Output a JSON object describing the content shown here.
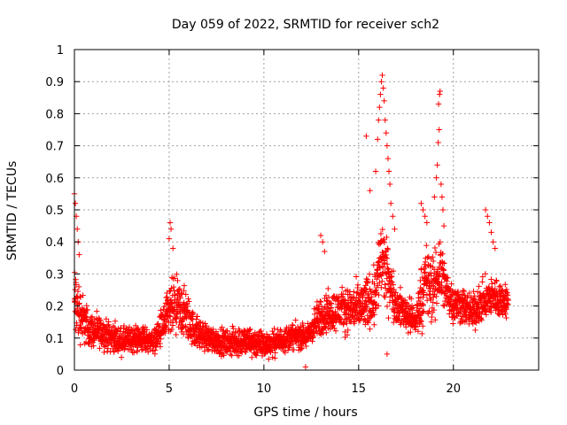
{
  "chart_data": {
    "type": "scatter",
    "title": "Day 059 of 2022, SRMTID for receiver sch2",
    "xlabel": "GPS time / hours",
    "ylabel": "SRMTID / TECUs",
    "xlim": [
      0,
      24.5
    ],
    "ylim": [
      0,
      1
    ],
    "x_ticks": [
      "0",
      "5",
      "10",
      "15",
      "20"
    ],
    "x_tick_values": [
      0,
      5,
      10,
      15,
      20
    ],
    "y_ticks": [
      "0",
      "0.1",
      "0.2",
      "0.3",
      "0.4",
      "0.5",
      "0.6",
      "0.7",
      "0.8",
      "0.9",
      "1"
    ],
    "y_tick_values": [
      0,
      0.1,
      0.2,
      0.3,
      0.4,
      0.5,
      0.6,
      0.7,
      0.8,
      0.9,
      1.0
    ],
    "grid": true,
    "marker": "+",
    "marker_color": "#ff0000",
    "envelope": [
      [
        0.0,
        0.02,
        0.4
      ],
      [
        0.3,
        0.05,
        0.3
      ],
      [
        0.8,
        0.05,
        0.2
      ],
      [
        1.5,
        0.05,
        0.18
      ],
      [
        2.5,
        0.03,
        0.15
      ],
      [
        3.5,
        0.04,
        0.16
      ],
      [
        4.2,
        0.04,
        0.14
      ],
      [
        4.6,
        0.04,
        0.22
      ],
      [
        5.2,
        0.06,
        0.33
      ],
      [
        5.8,
        0.06,
        0.3
      ],
      [
        6.3,
        0.05,
        0.2
      ],
      [
        7.0,
        0.04,
        0.16
      ],
      [
        8.0,
        0.03,
        0.14
      ],
      [
        9.0,
        0.02,
        0.16
      ],
      [
        10.0,
        0.02,
        0.14
      ],
      [
        10.5,
        0.03,
        0.14
      ],
      [
        11.5,
        0.05,
        0.16
      ],
      [
        12.3,
        0.05,
        0.16
      ],
      [
        13.0,
        0.08,
        0.26
      ],
      [
        14.0,
        0.1,
        0.28
      ],
      [
        15.0,
        0.08,
        0.3
      ],
      [
        15.8,
        0.1,
        0.35
      ],
      [
        16.2,
        0.15,
        0.55
      ],
      [
        16.6,
        0.15,
        0.4
      ],
      [
        17.0,
        0.12,
        0.28
      ],
      [
        17.5,
        0.1,
        0.26
      ],
      [
        18.0,
        0.08,
        0.22
      ],
      [
        18.5,
        0.1,
        0.45
      ],
      [
        19.0,
        0.1,
        0.4
      ],
      [
        19.3,
        0.15,
        0.5
      ],
      [
        19.6,
        0.15,
        0.35
      ],
      [
        20.0,
        0.12,
        0.3
      ],
      [
        20.5,
        0.12,
        0.28
      ],
      [
        21.0,
        0.1,
        0.26
      ],
      [
        21.5,
        0.12,
        0.3
      ],
      [
        22.0,
        0.14,
        0.32
      ],
      [
        22.5,
        0.14,
        0.3
      ],
      [
        22.9,
        0.14,
        0.28
      ]
    ],
    "highlights": [
      [
        0.0,
        0.55
      ],
      [
        0.05,
        0.52
      ],
      [
        0.1,
        0.48
      ],
      [
        0.15,
        0.44
      ],
      [
        0.2,
        0.4
      ],
      [
        0.25,
        0.36
      ],
      [
        5.05,
        0.46
      ],
      [
        5.1,
        0.44
      ],
      [
        5.0,
        0.41
      ],
      [
        5.2,
        0.38
      ],
      [
        13.0,
        0.42
      ],
      [
        13.1,
        0.4
      ],
      [
        13.2,
        0.37
      ],
      [
        12.2,
        0.01
      ],
      [
        15.4,
        0.73
      ],
      [
        15.6,
        0.56
      ],
      [
        15.9,
        0.62
      ],
      [
        16.0,
        0.72
      ],
      [
        16.05,
        0.78
      ],
      [
        16.1,
        0.82
      ],
      [
        16.15,
        0.86
      ],
      [
        16.2,
        0.9
      ],
      [
        16.25,
        0.92
      ],
      [
        16.3,
        0.88
      ],
      [
        16.35,
        0.84
      ],
      [
        16.4,
        0.78
      ],
      [
        16.45,
        0.74
      ],
      [
        16.5,
        0.7
      ],
      [
        16.55,
        0.66
      ],
      [
        16.6,
        0.62
      ],
      [
        16.65,
        0.58
      ],
      [
        16.7,
        0.52
      ],
      [
        16.8,
        0.48
      ],
      [
        16.9,
        0.44
      ],
      [
        16.5,
        0.05
      ],
      [
        18.3,
        0.52
      ],
      [
        18.4,
        0.5
      ],
      [
        18.5,
        0.48
      ],
      [
        18.6,
        0.46
      ],
      [
        19.0,
        0.54
      ],
      [
        19.1,
        0.6
      ],
      [
        19.15,
        0.64
      ],
      [
        19.2,
        0.71
      ],
      [
        19.25,
        0.75
      ],
      [
        19.22,
        0.83
      ],
      [
        19.27,
        0.86
      ],
      [
        19.3,
        0.87
      ],
      [
        19.35,
        0.58
      ],
      [
        19.4,
        0.54
      ],
      [
        19.45,
        0.5
      ],
      [
        19.5,
        0.45
      ],
      [
        21.7,
        0.5
      ],
      [
        21.8,
        0.48
      ],
      [
        21.9,
        0.46
      ],
      [
        22.0,
        0.43
      ],
      [
        22.1,
        0.4
      ],
      [
        22.2,
        0.38
      ]
    ],
    "sample_step_hours": 0.008,
    "series_color": "#ff0000",
    "grid_color": "#a0a0a0",
    "axis_color": "#000000"
  }
}
